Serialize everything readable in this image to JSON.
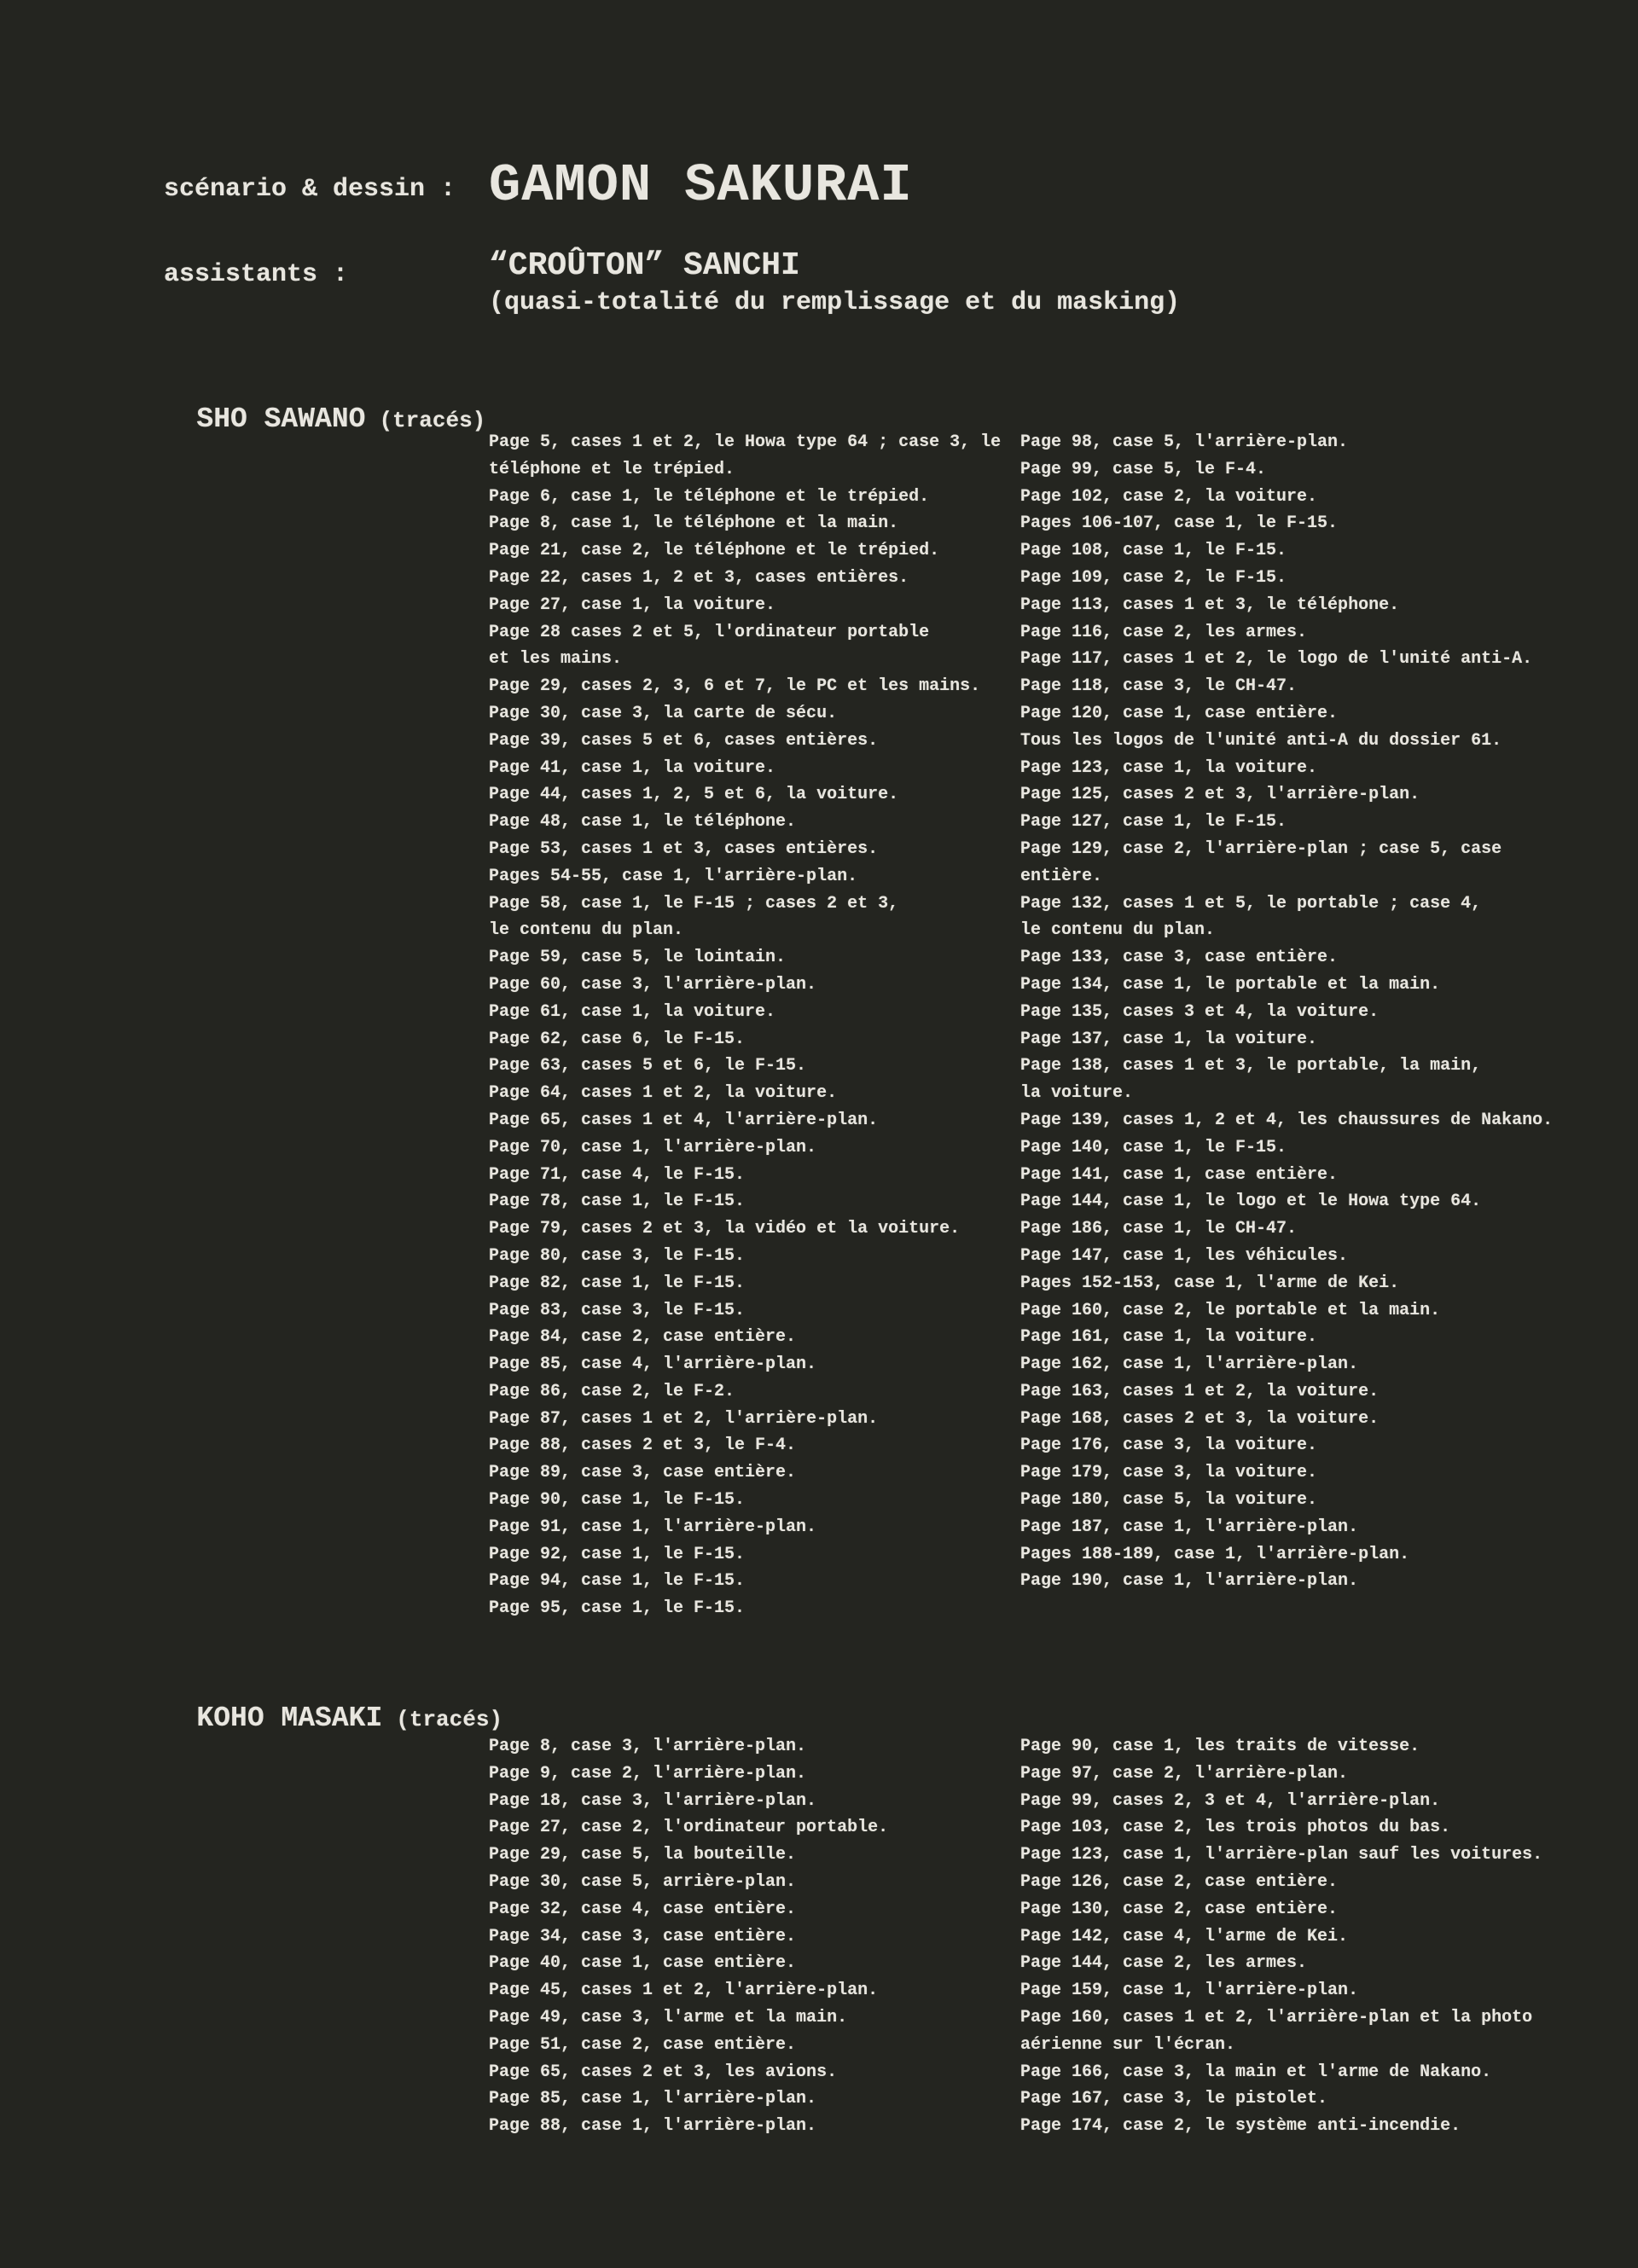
{
  "colors": {
    "background": "#242520",
    "ink": "#e8e6df"
  },
  "header": {
    "role1": "scénario & dessin :",
    "name1": "GAMON SAKURAI",
    "role2": "assistants :",
    "name2": "“CROÛTON” SANCHI",
    "note2": "(quasi-totalité du remplissage et du masking)"
  },
  "sections": [
    {
      "name": "SHO SAWANO",
      "suffix": "(tracés)",
      "columns": [
        [
          "Page 5, cases 1 et 2, le Howa type 64 ; case 3, le",
          "téléphone et le trépied.",
          "Page 6, case 1, le téléphone et le trépied.",
          "Page 8, case 1, le téléphone et la main.",
          "Page 21, case 2, le téléphone et le trépied.",
          "Page 22, cases 1, 2 et 3, cases entières.",
          "Page 27, case 1, la voiture.",
          "Page 28 cases 2 et 5, l'ordinateur portable",
          "et les mains.",
          "Page 29, cases 2, 3, 6 et 7, le PC et les mains.",
          "Page 30, case 3, la carte de sécu.",
          "Page 39, cases 5 et 6, cases entières.",
          "Page 41, case 1, la voiture.",
          "Page 44, cases 1, 2, 5 et 6, la voiture.",
          "Page 48, case 1, le téléphone.",
          "Page 53, cases 1 et 3, cases entières.",
          "Pages 54-55, case 1, l'arrière-plan.",
          "Page 58, case 1, le F-15 ; cases 2 et 3,",
          "le contenu du plan.",
          "Page 59, case 5, le lointain.",
          "Page 60, case 3, l'arrière-plan.",
          "Page 61, case 1, la voiture.",
          "Page 62, case 6, le F-15.",
          "Page 63, cases 5 et 6, le F-15.",
          "Page 64, cases 1 et 2, la voiture.",
          "Page 65, cases 1 et 4, l'arrière-plan.",
          "Page 70, case 1, l'arrière-plan.",
          "Page 71, case 4, le F-15.",
          "Page 78, case 1, le F-15.",
          "Page 79, cases 2 et 3, la vidéo et la voiture.",
          "Page 80, case 3, le F-15.",
          "Page 82, case 1, le F-15.",
          "Page 83, case 3, le F-15.",
          "Page 84, case 2, case entière.",
          "Page 85, case 4, l'arrière-plan.",
          "Page 86, case 2, le F-2.",
          "Page 87, cases 1 et 2, l'arrière-plan.",
          "Page 88, cases 2 et 3, le F-4.",
          "Page 89, case 3, case entière.",
          "Page 90, case 1, le F-15.",
          "Page 91, case 1, l'arrière-plan.",
          "Page 92, case 1, le F-15.",
          "Page 94, case 1, le F-15.",
          "Page 95, case 1, le F-15."
        ],
        [
          "Page 98, case 5, l'arrière-plan.",
          "Page 99, case 5, le F-4.",
          "Page 102, case 2, la voiture.",
          "Pages 106-107, case 1, le F-15.",
          "Page 108, case 1, le F-15.",
          "Page 109, case 2, le F-15.",
          "Page 113, cases 1 et 3, le téléphone.",
          "Page 116, case 2, les armes.",
          "Page 117, cases 1 et 2, le logo de l'unité anti-A.",
          "Page 118, case 3, le CH-47.",
          "Page 120, case 1, case entière.",
          "Tous les logos de l'unité anti-A du dossier 61.",
          "Page 123, case 1, la voiture.",
          "Page 125, cases 2 et 3, l'arrière-plan.",
          "Page 127, case 1, le F-15.",
          "Page 129, case 2, l'arrière-plan ; case 5, case",
          "entière.",
          "Page 132, cases 1 et 5, le portable ; case 4,",
          "le contenu du plan.",
          "Page 133, case 3, case entière.",
          "Page 134, case 1, le portable et la main.",
          "Page 135, cases 3 et 4, la voiture.",
          "Page 137, case 1, la voiture.",
          "Page 138, cases 1 et 3, le portable, la main,",
          "la voiture.",
          "Page 139, cases 1, 2 et 4, les chaussures de Nakano.",
          "Page 140, case 1, le F-15.",
          "Page 141, case 1, case entière.",
          "Page 144, case 1, le logo et le Howa type 64.",
          "Page 186, case 1, le CH-47.",
          "Page 147, case 1, les véhicules.",
          "Pages 152-153, case 1, l'arme de Kei.",
          "Page 160, case 2, le portable et la main.",
          "Page 161, case 1, la voiture.",
          "Page 162, case 1, l'arrière-plan.",
          "Page 163, cases 1 et 2, la voiture.",
          "Page 168, cases 2 et 3, la voiture.",
          "Page 176, case 3, la voiture.",
          "Page 179, case 3, la voiture.",
          "Page 180, case 5, la voiture.",
          "Page 187, case 1, l'arrière-plan.",
          "Pages 188-189, case 1, l'arrière-plan.",
          "Page 190, case 1, l'arrière-plan."
        ]
      ]
    },
    {
      "name": "KOHO MASAKI",
      "suffix": "(tracés)",
      "columns": [
        [
          "Page 8, case 3, l'arrière-plan.",
          "Page 9, case 2, l'arrière-plan.",
          "Page 18, case 3, l'arrière-plan.",
          "Page 27, case 2, l'ordinateur portable.",
          "Page 29, case 5, la bouteille.",
          "Page 30, case 5, arrière-plan.",
          "Page 32, case 4, case entière.",
          "Page 34, case 3, case entière.",
          "Page 40, case 1, case entière.",
          "Page 45, cases 1 et 2, l'arrière-plan.",
          "Page 49, case 3, l'arme et la main.",
          "Page 51, case 2, case entière.",
          "Page 65, cases 2 et 3, les avions.",
          "Page 85, case 1, l'arrière-plan.",
          "Page 88, case 1, l'arrière-plan."
        ],
        [
          "Page 90, case 1, les traits de vitesse.",
          "Page 97, case 2, l'arrière-plan.",
          "Page 99, cases 2, 3 et 4, l'arrière-plan.",
          "Page 103, case 2, les trois photos du bas.",
          "Page 123, case 1, l'arrière-plan sauf les voitures.",
          "Page 126, case 2, case entière.",
          "Page 130, case 2, case entière.",
          "Page 142, case 4, l'arme de Kei.",
          "Page 144, case 2, les armes.",
          "Page 159, case 1, l'arrière-plan.",
          "Page 160, cases 1 et 2, l'arrière-plan et la photo",
          "aérienne sur l'écran.",
          "Page 166, case 3, la main et l'arme de Nakano.",
          "Page 167, case 3, le pistolet.",
          "Page 174, case 2, le système anti-incendie."
        ]
      ]
    }
  ]
}
